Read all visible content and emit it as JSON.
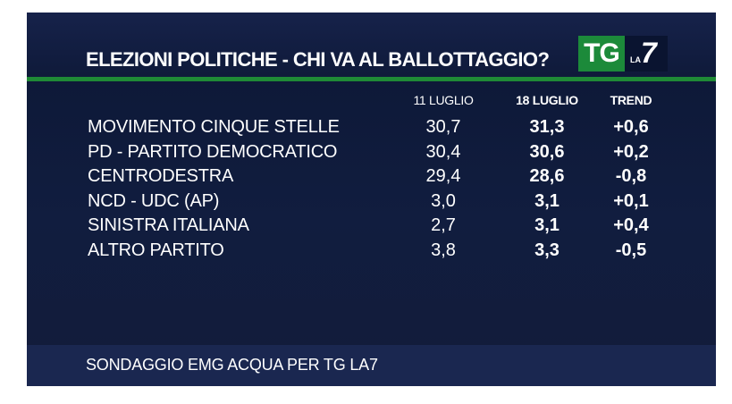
{
  "header": {
    "title": "ELEZIONI POLITICHE - CHI VA AL BALLOTTAGGIO?",
    "logo_tg": "TG",
    "logo_la": "LA",
    "logo_7": "7"
  },
  "chart_data": {
    "type": "table",
    "columns": [
      "11 LUGLIO",
      "18 LUGLIO",
      "TREND"
    ],
    "rows": [
      {
        "party": "MOVIMENTO CINQUE STELLE",
        "values": [
          "30,7",
          "31,3",
          "+0,6"
        ]
      },
      {
        "party": "PD - PARTITO DEMOCRATICO",
        "values": [
          "30,4",
          "30,6",
          "+0,2"
        ]
      },
      {
        "party": "CENTRODESTRA",
        "values": [
          "29,4",
          "28,6",
          "-0,8"
        ]
      },
      {
        "party": "NCD - UDC (AP)",
        "values": [
          "3,0",
          "3,1",
          "+0,1"
        ]
      },
      {
        "party": "SINISTRA ITALIANA",
        "values": [
          "2,7",
          "3,1",
          "+0,4"
        ]
      },
      {
        "party": "ALTRO PARTITO",
        "values": [
          "3,8",
          "3,3",
          "-0,5"
        ]
      }
    ]
  },
  "footer": {
    "source": "SONDAGGIO EMG ACQUA PER TG LA7"
  },
  "colors": {
    "background": "#0f1a3a",
    "accent_green": "#1f8a36",
    "text": "#ffffff"
  }
}
